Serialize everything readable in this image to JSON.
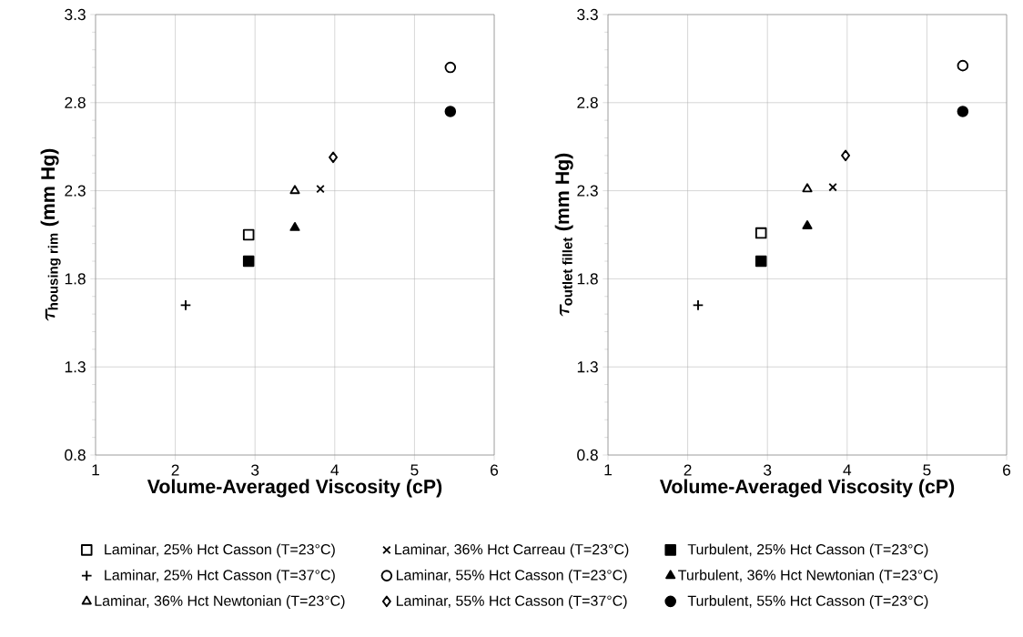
{
  "chart_data": [
    {
      "type": "scatter",
      "xlabel": "Volume-Averaged Viscosity (cP)",
      "ylabel": "\\boldsymbol{\\tau}_{\\textbf{housing rim}}\\textbf{ (mm Hg)}",
      "xlim": [
        1,
        6
      ],
      "xticks": [
        1,
        2,
        3,
        4,
        5,
        6
      ],
      "ylim": [
        0.8,
        3.3
      ],
      "yticks": [
        0.8,
        1.3,
        1.8,
        2.3,
        2.8,
        3.3
      ],
      "grid": true,
      "legend": "bottom",
      "series": [
        {
          "name": "Laminar, 25% Hct Casson (T=23°C)",
          "marker": "square",
          "color": "#ffffff",
          "x": [
            2.92
          ],
          "values": [
            2.05
          ]
        },
        {
          "name": "Laminar, 36% Hct Carreau (T=23°C)",
          "marker": "cross",
          "color": "#000000",
          "x": [
            3.82
          ],
          "values": [
            2.31
          ]
        },
        {
          "name": "Turbulent, 25% Hct Casson (T=23°C)",
          "marker": "square",
          "color": "#000000",
          "x": [
            2.92
          ],
          "values": [
            1.9
          ]
        },
        {
          "name": "Laminar, 25% Hct Casson (T=37°C)",
          "marker": "plus",
          "color": "#000000",
          "x": [
            2.13
          ],
          "values": [
            1.65
          ]
        },
        {
          "name": "Laminar, 55% Hct Casson (T=23°C)",
          "marker": "circle",
          "color": "#ffffff",
          "x": [
            5.45
          ],
          "values": [
            3.0
          ]
        },
        {
          "name": "Turbulent, 36% Hct Newtonian (T=23°C)",
          "marker": "triangle",
          "color": "#000000",
          "x": [
            3.5
          ],
          "values": [
            2.09
          ]
        },
        {
          "name": "Laminar, 36% Hct Newtonian (T=23°C)",
          "marker": "triangle",
          "color": "#ffffff",
          "x": [
            3.5
          ],
          "values": [
            2.3
          ]
        },
        {
          "name": "Laminar, 55% Hct Casson (T=37°C)",
          "marker": "diamond",
          "color": "#ffffff",
          "x": [
            3.98
          ],
          "values": [
            2.49
          ]
        },
        {
          "name": "Turbulent, 55% Hct Casson (T=23°C)",
          "marker": "circle",
          "color": "#000000",
          "x": [
            5.45
          ],
          "values": [
            2.75
          ]
        }
      ]
    },
    {
      "type": "scatter",
      "xlabel": "Volume-Averaged Viscosity (cP)",
      "ylabel": "\\boldsymbol{\\tau}_{\\textbf{outlet fillet}}\\textbf{ (mm Hg)}",
      "xlim": [
        1,
        6
      ],
      "xticks": [
        1,
        2,
        3,
        4,
        5,
        6
      ],
      "ylim": [
        0.8,
        3.3
      ],
      "yticks": [
        0.8,
        1.3,
        1.8,
        2.3,
        2.8,
        3.3
      ],
      "grid": true,
      "series": [
        {
          "marker": "square",
          "color": "#ffffff",
          "x": [
            2.92
          ],
          "values": [
            2.06
          ]
        },
        {
          "marker": "cross",
          "color": "#000000",
          "x": [
            3.82
          ],
          "values": [
            2.32
          ]
        },
        {
          "marker": "square",
          "color": "#000000",
          "x": [
            2.92
          ],
          "values": [
            1.9
          ]
        },
        {
          "marker": "plus",
          "color": "#000000",
          "x": [
            2.13
          ],
          "values": [
            1.65
          ]
        },
        {
          "marker": "circle",
          "color": "#ffffff",
          "x": [
            5.45
          ],
          "values": [
            3.01
          ]
        },
        {
          "marker": "triangle",
          "color": "#000000",
          "x": [
            3.5
          ],
          "values": [
            2.1
          ]
        },
        {
          "marker": "triangle",
          "color": "#ffffff",
          "x": [
            3.5
          ],
          "values": [
            2.31
          ]
        },
        {
          "marker": "diamond",
          "color": "#ffffff",
          "x": [
            3.98
          ],
          "values": [
            2.5
          ]
        },
        {
          "marker": "circle",
          "color": "#000000",
          "x": [
            5.45
          ],
          "values": [
            2.75
          ]
        }
      ]
    }
  ]
}
